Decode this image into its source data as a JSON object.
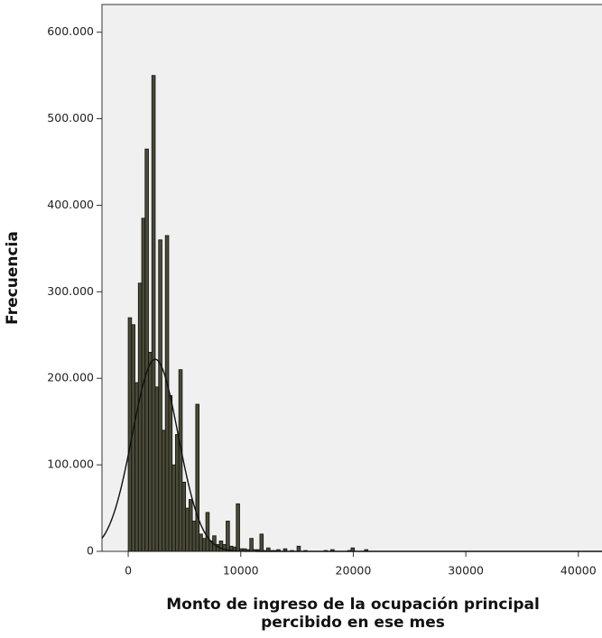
{
  "chart_data": {
    "type": "histogram",
    "x_label": [
      "Monto de ingreso de la ocupación principal",
      "percibido en ese mes"
    ],
    "y_label": "Frecuencia",
    "bins": [
      0,
      300,
      600,
      900,
      1200,
      1500,
      1800,
      2100,
      2400,
      2700,
      3000,
      3300,
      3600,
      3900,
      4200,
      4500,
      4800,
      5100,
      5400,
      5700,
      6000,
      6300,
      6600,
      6900,
      7200,
      7500,
      7800,
      8100,
      8400,
      8700,
      9000,
      9300,
      9600,
      9900,
      10200,
      10500,
      10800,
      11100,
      11400,
      11700,
      12000,
      12300,
      12600,
      12900,
      13200,
      13500,
      13800,
      14100,
      14400,
      14700,
      15000,
      15300,
      15600,
      15900,
      16200,
      16500,
      16800,
      17100,
      17400,
      17700,
      18000,
      18300,
      18600,
      18900,
      19200,
      19500,
      19800,
      20100,
      20400,
      20700,
      21000,
      21300
    ],
    "counts": [
      270000,
      262000,
      195000,
      310000,
      385000,
      465000,
      230000,
      550000,
      190000,
      360000,
      140000,
      365000,
      180000,
      100000,
      135000,
      210000,
      80000,
      50000,
      60000,
      35000,
      170000,
      20000,
      15000,
      45000,
      12000,
      18000,
      8000,
      12000,
      8000,
      35000,
      6000,
      5000,
      55000,
      3000,
      3000,
      2000,
      15000,
      2000,
      2000,
      20000,
      1000,
      4000,
      1000,
      1000,
      2000,
      0,
      3000,
      0,
      1000,
      0,
      6000,
      0,
      1000,
      0,
      0,
      0,
      0,
      0,
      1000,
      0,
      2000,
      0,
      0,
      0,
      0,
      1000,
      4000,
      0,
      0,
      0,
      2000
    ],
    "color": "#4a4a36",
    "normal_curve": {
      "mean": 2400,
      "sd": 2040,
      "peak": 222000
    },
    "xlim": [
      -2330,
      42100
    ],
    "xticks": [
      0,
      10000,
      20000,
      30000,
      40000
    ],
    "ylim": [
      0,
      632000
    ],
    "yticks": [
      0,
      {
        "value": 100000,
        "label": "100.000"
      },
      {
        "value": 200000,
        "label": "200.000"
      },
      {
        "value": 300000,
        "label": "300.000"
      },
      {
        "value": 400000,
        "label": "400.000"
      },
      {
        "value": 500000,
        "label": "500.000"
      },
      {
        "value": 600000,
        "label": "600.000"
      }
    ],
    "plot_background": "#f0f0f0"
  }
}
